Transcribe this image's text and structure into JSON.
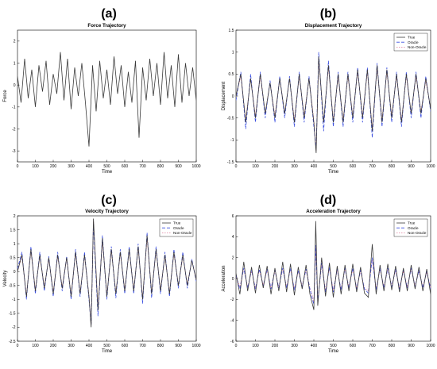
{
  "figure": {
    "panel_labels": [
      "(a)",
      "(b)",
      "(c)",
      "(d)"
    ]
  },
  "colors": {
    "true": "#3a3a3a",
    "oracle": "#3b4fe0",
    "non_oracle": "#e07a9a",
    "axis": "#000000",
    "background": "#ffffff"
  },
  "chart_data": [
    {
      "type": "line",
      "title": "Force Trajectory",
      "xlabel": "Time",
      "ylabel": "Force",
      "xlim": [
        0,
        1000
      ],
      "ylim": [
        -3.5,
        2.5
      ],
      "xticks": [
        0,
        100,
        200,
        300,
        400,
        500,
        600,
        700,
        800,
        900,
        1000
      ],
      "yticks": [
        -3,
        -2,
        -1,
        0,
        1,
        2
      ],
      "grid": false,
      "legend": null,
      "series": [
        {
          "key": "true",
          "x": [
            0,
            20,
            40,
            60,
            80,
            100,
            120,
            140,
            160,
            180,
            200,
            220,
            240,
            260,
            280,
            300,
            320,
            340,
            360,
            380,
            400,
            420,
            440,
            460,
            480,
            500,
            520,
            540,
            560,
            580,
            600,
            620,
            640,
            660,
            680,
            700,
            720,
            740,
            760,
            780,
            800,
            820,
            840,
            860,
            880,
            900,
            920,
            940,
            960,
            980,
            1000
          ],
          "values": [
            0.4,
            -0.8,
            1.2,
            -0.6,
            0.7,
            -1.0,
            0.9,
            -0.3,
            1.1,
            -0.9,
            0.5,
            -0.4,
            1.5,
            -0.7,
            1.2,
            -1.1,
            0.8,
            -0.5,
            1.0,
            -0.8,
            -2.8,
            0.9,
            -1.2,
            1.1,
            -0.6,
            0.7,
            -0.9,
            1.3,
            -0.4,
            0.9,
            -1.0,
            0.6,
            -0.8,
            1.1,
            -2.4,
            0.8,
            -0.7,
            1.2,
            -0.5,
            1.0,
            -0.9,
            1.5,
            -0.6,
            0.9,
            -1.0,
            1.4,
            -0.8,
            1.0,
            -0.5,
            0.8,
            -0.7
          ]
        }
      ]
    },
    {
      "type": "line",
      "title": "Displacement Trajectory",
      "xlabel": "Time",
      "ylabel": "Displacement",
      "xlim": [
        0,
        1000
      ],
      "ylim": [
        -1.5,
        1.5
      ],
      "xticks": [
        0,
        100,
        200,
        300,
        400,
        500,
        600,
        700,
        800,
        900,
        1000
      ],
      "yticks": [
        -1.5,
        -1,
        -0.5,
        0,
        0.5,
        1,
        1.5
      ],
      "grid": false,
      "legend": "top-right",
      "series": [
        {
          "name": "True",
          "key": "true",
          "x": [
            0,
            25,
            50,
            75,
            100,
            125,
            150,
            175,
            200,
            225,
            250,
            275,
            300,
            325,
            350,
            375,
            400,
            412,
            425,
            450,
            475,
            500,
            525,
            550,
            575,
            600,
            625,
            650,
            675,
            700,
            725,
            750,
            775,
            800,
            825,
            850,
            875,
            900,
            925,
            950,
            975,
            1000
          ],
          "values": [
            0,
            0.5,
            -0.6,
            0.4,
            -0.5,
            0.5,
            -0.4,
            0.3,
            -0.5,
            0.4,
            -0.4,
            0.4,
            -0.6,
            0.5,
            -0.5,
            0.4,
            -0.6,
            -1.3,
            0.9,
            -0.6,
            0.7,
            -0.6,
            0.5,
            -0.6,
            0.5,
            -0.5,
            0.6,
            -0.5,
            0.6,
            -0.8,
            0.7,
            -0.6,
            0.6,
            -0.5,
            0.5,
            -0.6,
            0.5,
            -0.4,
            0.5,
            -0.4,
            0.4,
            -0.3
          ]
        },
        {
          "name": "Oracle",
          "key": "oracle",
          "x": [
            0,
            25,
            50,
            75,
            100,
            125,
            150,
            175,
            200,
            225,
            250,
            275,
            300,
            325,
            350,
            375,
            400,
            412,
            425,
            450,
            475,
            500,
            525,
            550,
            575,
            600,
            625,
            650,
            675,
            700,
            725,
            750,
            775,
            800,
            825,
            850,
            875,
            900,
            925,
            950,
            975,
            1000
          ],
          "values": [
            -0.1,
            0.55,
            -0.75,
            0.5,
            -0.6,
            0.55,
            -0.5,
            0.35,
            -0.6,
            0.45,
            -0.5,
            0.45,
            -0.7,
            0.55,
            -0.6,
            0.45,
            -0.7,
            -1.2,
            1.0,
            -0.8,
            0.8,
            -0.7,
            0.55,
            -0.7,
            0.55,
            -0.6,
            0.65,
            -0.6,
            0.65,
            -0.95,
            0.75,
            -0.7,
            0.65,
            -0.6,
            0.55,
            -0.7,
            0.55,
            -0.5,
            0.55,
            -0.5,
            0.45,
            -0.35
          ]
        },
        {
          "name": "Non-Oracle",
          "key": "non_oracle",
          "x": [
            0,
            25,
            50,
            75,
            100,
            125,
            150,
            175,
            200,
            225,
            250,
            275,
            300,
            325,
            350,
            375,
            400,
            412,
            425,
            450,
            475,
            500,
            525,
            550,
            575,
            600,
            625,
            650,
            675,
            700,
            725,
            750,
            775,
            800,
            825,
            850,
            875,
            900,
            925,
            950,
            975,
            1000
          ],
          "values": [
            0,
            0.45,
            -0.55,
            0.4,
            -0.45,
            0.45,
            -0.4,
            0.3,
            -0.45,
            0.4,
            -0.4,
            0.4,
            -0.55,
            0.45,
            -0.45,
            0.4,
            -0.55,
            -1.25,
            0.85,
            -0.6,
            0.65,
            -0.55,
            0.45,
            -0.55,
            0.45,
            -0.45,
            0.55,
            -0.45,
            0.55,
            -0.75,
            0.65,
            -0.55,
            0.55,
            -0.45,
            0.45,
            -0.55,
            0.45,
            -0.4,
            0.45,
            -0.35,
            0.35,
            -0.3
          ]
        }
      ]
    },
    {
      "type": "line",
      "title": "Velocity Trajectory",
      "xlabel": "Time",
      "ylabel": "Velocity",
      "xlim": [
        0,
        1000
      ],
      "ylim": [
        -2.5,
        2
      ],
      "xticks": [
        0,
        100,
        200,
        300,
        400,
        500,
        600,
        700,
        800,
        900,
        1000
      ],
      "yticks": [
        -2.5,
        -2,
        -1.5,
        -1,
        -0.5,
        0,
        0.5,
        1,
        1.5,
        2
      ],
      "grid": false,
      "legend": "top-right",
      "series": [
        {
          "name": "True",
          "key": "true",
          "x": [
            0,
            25,
            50,
            75,
            100,
            125,
            150,
            175,
            200,
            225,
            250,
            275,
            300,
            325,
            350,
            375,
            400,
            412,
            425,
            450,
            475,
            500,
            525,
            550,
            575,
            600,
            625,
            650,
            675,
            700,
            725,
            750,
            775,
            800,
            825,
            850,
            875,
            900,
            925,
            950,
            975,
            1000
          ],
          "values": [
            0,
            0.6,
            -0.9,
            0.8,
            -0.7,
            0.6,
            -0.6,
            0.5,
            -0.8,
            0.6,
            -0.6,
            0.5,
            -0.9,
            0.7,
            -0.8,
            0.6,
            -0.9,
            -2.0,
            1.9,
            -1.4,
            1.2,
            -0.9,
            0.8,
            -0.8,
            0.7,
            -0.7,
            0.8,
            -0.7,
            0.9,
            -1.0,
            1.3,
            -0.8,
            0.8,
            -0.7,
            0.6,
            -0.8,
            0.7,
            -0.5,
            0.6,
            -0.5,
            0.4,
            -0.3
          ]
        },
        {
          "name": "Oracle",
          "key": "oracle",
          "x": [
            0,
            25,
            50,
            75,
            100,
            125,
            150,
            175,
            200,
            225,
            250,
            275,
            300,
            325,
            350,
            375,
            400,
            412,
            425,
            450,
            475,
            500,
            525,
            550,
            575,
            600,
            625,
            650,
            675,
            700,
            725,
            750,
            775,
            800,
            825,
            850,
            875,
            900,
            925,
            950,
            975,
            1000
          ],
          "values": [
            0.1,
            0.7,
            -1.0,
            0.9,
            -0.8,
            0.7,
            -0.7,
            0.55,
            -0.9,
            0.7,
            -0.7,
            0.55,
            -1.0,
            0.8,
            -0.9,
            0.7,
            -1.0,
            -1.9,
            1.7,
            -1.6,
            1.3,
            -1.0,
            0.9,
            -0.95,
            0.8,
            -0.8,
            0.9,
            -0.8,
            1.0,
            -1.15,
            1.4,
            -0.95,
            0.9,
            -0.8,
            0.7,
            -0.9,
            0.8,
            -0.6,
            0.7,
            -0.6,
            0.45,
            -0.35
          ]
        },
        {
          "name": "Non-Oracle",
          "key": "non_oracle",
          "x": [
            0,
            25,
            50,
            75,
            100,
            125,
            150,
            175,
            200,
            225,
            250,
            275,
            300,
            325,
            350,
            375,
            400,
            412,
            425,
            450,
            475,
            500,
            525,
            550,
            575,
            600,
            625,
            650,
            675,
            700,
            725,
            750,
            775,
            800,
            825,
            850,
            875,
            900,
            925,
            950,
            975,
            1000
          ],
          "values": [
            0,
            0.55,
            -0.85,
            0.75,
            -0.65,
            0.55,
            -0.55,
            0.45,
            -0.75,
            0.55,
            -0.55,
            0.45,
            -0.85,
            0.65,
            -0.75,
            0.55,
            -0.85,
            -1.9,
            1.8,
            -1.3,
            1.1,
            -0.85,
            0.75,
            -0.75,
            0.65,
            -0.65,
            0.75,
            -0.65,
            0.85,
            -0.95,
            1.2,
            -0.75,
            0.75,
            -0.65,
            0.55,
            -0.75,
            0.65,
            -0.5,
            0.55,
            -0.45,
            0.4,
            -0.3
          ]
        }
      ]
    },
    {
      "type": "line",
      "title": "Acceleration Trajectory",
      "xlabel": "Time",
      "ylabel": "Acceleration",
      "xlim": [
        0,
        1000
      ],
      "ylim": [
        -6,
        6
      ],
      "xticks": [
        0,
        100,
        200,
        300,
        400,
        500,
        600,
        700,
        800,
        900,
        1000
      ],
      "yticks": [
        -6,
        -4,
        -2,
        0,
        2,
        4,
        6
      ],
      "grid": false,
      "legend": "top-right",
      "series": [
        {
          "name": "True",
          "key": "true",
          "x": [
            0,
            20,
            40,
            60,
            80,
            100,
            120,
            140,
            160,
            180,
            200,
            220,
            240,
            260,
            280,
            300,
            320,
            340,
            360,
            380,
            400,
            410,
            420,
            440,
            460,
            480,
            500,
            520,
            540,
            560,
            580,
            600,
            620,
            640,
            660,
            680,
            700,
            720,
            740,
            760,
            780,
            800,
            820,
            840,
            860,
            880,
            900,
            920,
            940,
            960,
            980,
            1000
          ],
          "values": [
            0.5,
            -1.5,
            1.6,
            -1.2,
            1.1,
            -1.4,
            1.3,
            -0.9,
            1.2,
            -1.5,
            1.0,
            -1.2,
            1.6,
            -1.3,
            1.4,
            -1.6,
            1.1,
            -1.0,
            1.3,
            -1.5,
            -3.0,
            5.5,
            -2.6,
            2.0,
            -1.7,
            1.5,
            -1.8,
            1.2,
            -1.5,
            1.3,
            -1.2,
            1.4,
            -1.3,
            1.1,
            -1.4,
            -1.8,
            3.3,
            -1.5,
            1.3,
            -1.2,
            1.4,
            -1.1,
            1.2,
            -1.3,
            1.0,
            -1.2,
            1.3,
            -1.0,
            1.1,
            -1.2,
            0.9,
            -1.5
          ]
        },
        {
          "name": "Oracle",
          "key": "oracle",
          "x": [
            0,
            20,
            40,
            60,
            80,
            100,
            120,
            140,
            160,
            180,
            200,
            220,
            240,
            260,
            280,
            300,
            320,
            340,
            360,
            380,
            400,
            410,
            420,
            440,
            460,
            480,
            500,
            520,
            540,
            560,
            580,
            600,
            620,
            640,
            660,
            680,
            700,
            720,
            740,
            760,
            780,
            800,
            820,
            840,
            860,
            880,
            900,
            920,
            940,
            960,
            980,
            1000
          ],
          "values": [
            0.3,
            -1.0,
            1.0,
            -0.9,
            0.8,
            -1.0,
            0.9,
            -0.7,
            0.9,
            -1.0,
            0.8,
            -0.9,
            1.0,
            -0.9,
            1.0,
            -1.1,
            0.8,
            -0.8,
            0.9,
            -1.0,
            -2.5,
            3.2,
            -2.2,
            1.5,
            -1.3,
            1.1,
            -1.3,
            0.9,
            -1.1,
            1.0,
            -0.9,
            1.0,
            -1.0,
            0.8,
            -1.0,
            -1.4,
            2.0,
            -1.1,
            1.0,
            -0.9,
            1.0,
            -0.8,
            0.9,
            -1.0,
            0.8,
            -0.9,
            1.0,
            -0.8,
            0.8,
            -0.9,
            0.7,
            -1.0
          ]
        },
        {
          "name": "Non-Oracle",
          "key": "non_oracle",
          "x": [
            0,
            20,
            40,
            60,
            80,
            100,
            120,
            140,
            160,
            180,
            200,
            220,
            240,
            260,
            280,
            300,
            320,
            340,
            360,
            380,
            400,
            410,
            420,
            440,
            460,
            480,
            500,
            520,
            540,
            560,
            580,
            600,
            620,
            640,
            660,
            680,
            700,
            720,
            740,
            760,
            780,
            800,
            820,
            840,
            860,
            880,
            900,
            920,
            940,
            960,
            980,
            1000
          ],
          "values": [
            0.2,
            -0.8,
            0.9,
            -0.8,
            0.7,
            -0.9,
            0.8,
            -0.6,
            0.8,
            -0.9,
            0.7,
            -0.8,
            0.9,
            -0.8,
            0.9,
            -1.0,
            0.7,
            -0.7,
            0.8,
            -0.9,
            -2.2,
            3.0,
            -2.0,
            1.3,
            -1.1,
            1.0,
            -1.1,
            0.8,
            -1.0,
            0.9,
            -0.8,
            0.9,
            -0.9,
            0.7,
            -0.9,
            -1.2,
            1.8,
            -1.0,
            0.9,
            -0.8,
            0.9,
            -0.7,
            0.8,
            -0.9,
            0.7,
            -0.8,
            0.9,
            -0.7,
            0.7,
            -0.8,
            0.6,
            -0.9
          ]
        }
      ]
    }
  ]
}
